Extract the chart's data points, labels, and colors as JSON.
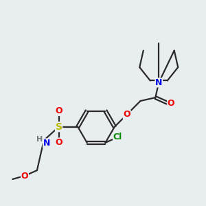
{
  "background_color": "#e8edf0",
  "bond_color": "#2a2a2a",
  "atom_colors": {
    "N": "#0000ee",
    "O": "#ee0000",
    "S": "#bbbb00",
    "Cl": "#008800",
    "H": "#777777",
    "C": "#2a2a2a"
  },
  "figsize": [
    3.0,
    3.0
  ],
  "dpi": 100
}
